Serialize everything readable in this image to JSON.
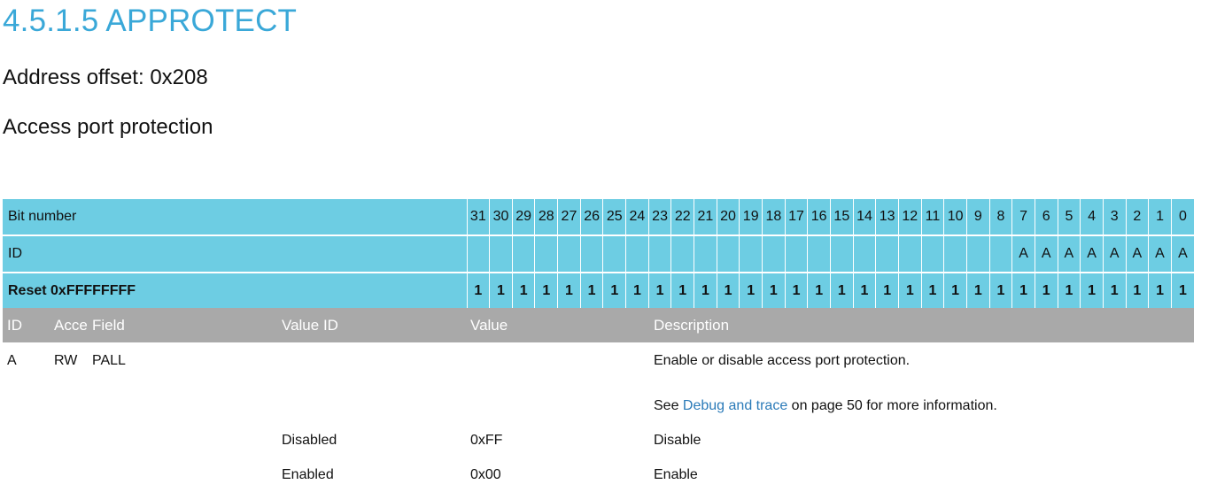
{
  "heading": "4.5.1.5 APPROTECT",
  "address_offset": "Address offset: 0x208",
  "description": "Access port protection",
  "register": {
    "bit_number_label": "Bit number",
    "id_label": "ID",
    "reset_label": "Reset 0xFFFFFFFF",
    "bits": [
      "31",
      "30",
      "29",
      "28",
      "27",
      "26",
      "25",
      "24",
      "23",
      "22",
      "21",
      "20",
      "19",
      "18",
      "17",
      "16",
      "15",
      "14",
      "13",
      "12",
      "11",
      "10",
      "9",
      "8",
      "7",
      "6",
      "5",
      "4",
      "3",
      "2",
      "1",
      "0"
    ],
    "ids": [
      "",
      "",
      "",
      "",
      "",
      "",
      "",
      "",
      "",
      "",
      "",
      "",
      "",
      "",
      "",
      "",
      "",
      "",
      "",
      "",
      "",
      "",
      "",
      "",
      "A",
      "A",
      "A",
      "A",
      "A",
      "A",
      "A",
      "A"
    ],
    "reset": [
      "1",
      "1",
      "1",
      "1",
      "1",
      "1",
      "1",
      "1",
      "1",
      "1",
      "1",
      "1",
      "1",
      "1",
      "1",
      "1",
      "1",
      "1",
      "1",
      "1",
      "1",
      "1",
      "1",
      "1",
      "1",
      "1",
      "1",
      "1",
      "1",
      "1",
      "1",
      "1"
    ]
  },
  "fields": {
    "headers": {
      "id": "ID",
      "access": "Acce",
      "field": "Field",
      "value_id": "Value ID",
      "value": "Value",
      "description": "Description"
    },
    "row": {
      "id": "A",
      "access": "RW",
      "field": "PALL",
      "description": "Enable or disable access port protection."
    },
    "see": {
      "prefix": "See ",
      "link": "Debug and trace",
      "suffix": " on page 50 for more information."
    },
    "values": [
      {
        "value_id": "Disabled",
        "value": "0xFF",
        "description": "Disable"
      },
      {
        "value_id": "Enabled",
        "value": "0x00",
        "description": "Enable"
      }
    ]
  }
}
